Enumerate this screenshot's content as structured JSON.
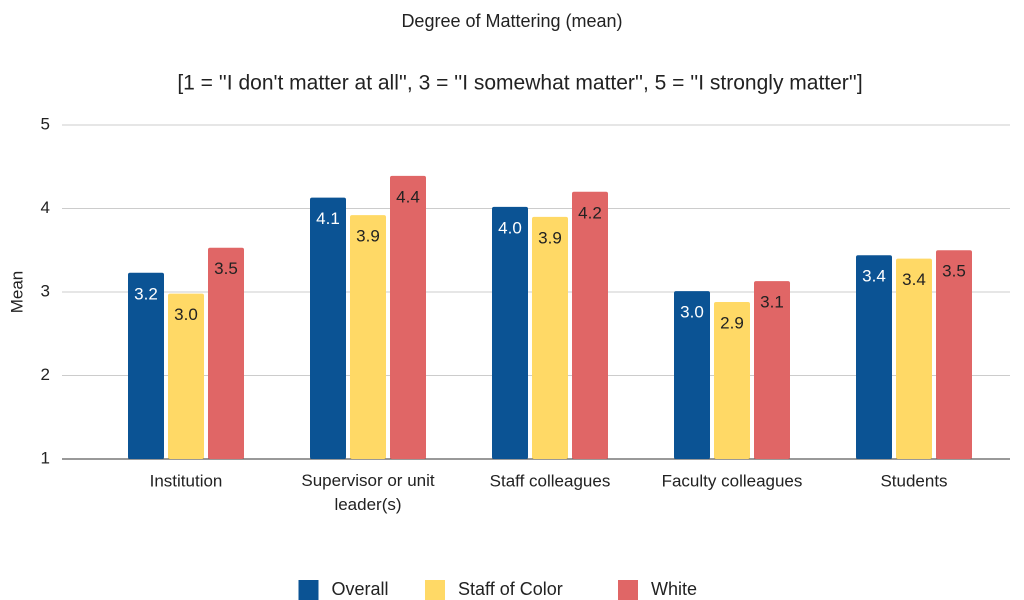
{
  "chart_data": {
    "type": "bar",
    "title": "Degree of Mattering (mean)",
    "subtitle": "[1 = ''I don't matter at all'', 3 = ''I somewhat matter'', 5 = ''I strongly matter'']",
    "y_label": "Mean",
    "categories": [
      "Institution",
      "Supervisor or unit leader(s)",
      "Staff colleagues",
      "Faculty colleagues",
      "Students"
    ],
    "series": [
      {
        "name": "Overall",
        "color": "#0b5394",
        "values": [
          3.23,
          4.13,
          4.02,
          3.01,
          3.44
        ],
        "value_labels": [
          "3.2",
          "4.1",
          "4.0",
          "3.0",
          "3.4"
        ]
      },
      {
        "name": "Staff of Color",
        "color": "#ffd966",
        "values": [
          2.98,
          3.92,
          3.9,
          2.88,
          3.4
        ],
        "value_labels": [
          "3.0",
          "3.9",
          "3.9",
          "2.9",
          "3.4"
        ]
      },
      {
        "name": "White",
        "color": "#e06666",
        "values": [
          3.53,
          4.39,
          4.2,
          3.13,
          3.5
        ],
        "value_labels": [
          "3.5",
          "4.4",
          "4.2",
          "3.1",
          "3.5"
        ]
      }
    ],
    "ylim": [
      1,
      5
    ],
    "yticks": [
      1,
      2,
      3,
      4,
      5
    ],
    "grid": true,
    "legend": "bottom"
  }
}
